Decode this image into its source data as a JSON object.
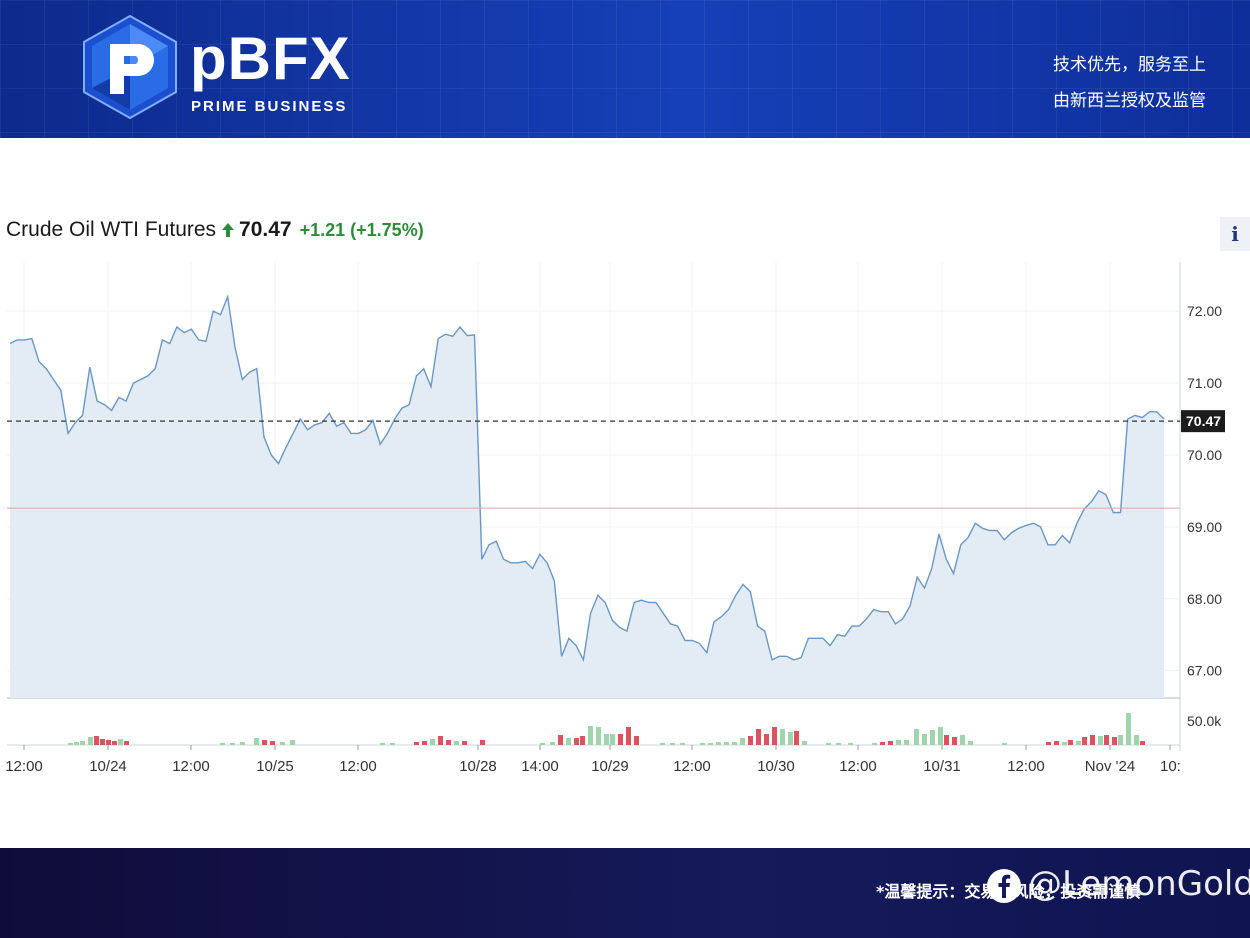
{
  "banner": {
    "logo_word": "pBFX",
    "logo_sub": "PRIME BUSINESS",
    "tagline_1": "技术优先，服务至上",
    "tagline_2": "由新西兰授权及监管",
    "colors": {
      "banner": "#1640b8",
      "footer": "#151a5a"
    }
  },
  "header": {
    "instrument": "Crude Oil WTI Futures",
    "price": "70.47",
    "change": "+1.21 (+1.75%)",
    "trend_icon": "up-arrow-icon",
    "info_label": "i"
  },
  "footer": {
    "note": "*温馨提示：交易有风险，投资需谨慎",
    "watermark": "@LemonGold",
    "watermark_icon": "facebook-icon"
  },
  "chart_data": {
    "type": "area",
    "y_ticks": [
      "72.00",
      "71.00",
      "70.00",
      "69.00",
      "68.00",
      "67.00"
    ],
    "ylim": [
      66.62,
      72.6
    ],
    "current_price": 70.47,
    "current_price_label": "70.47",
    "previous_close": 69.26,
    "volume_tick": "50.0k",
    "x_labels": [
      "12:00",
      "10/24",
      "12:00",
      "10/25",
      "12:00",
      "10/28",
      "14:00",
      "10/29",
      "12:00",
      "10/30",
      "12:00",
      "10/31",
      "12:00",
      "Nov '24",
      "10:"
    ],
    "price_series": [
      71.55,
      71.6,
      71.6,
      71.62,
      71.3,
      71.2,
      71.05,
      70.9,
      70.3,
      70.45,
      70.55,
      71.22,
      70.75,
      70.7,
      70.62,
      70.8,
      70.75,
      71.0,
      71.05,
      71.1,
      71.2,
      71.6,
      71.55,
      71.78,
      71.7,
      71.75,
      71.6,
      71.58,
      72.0,
      71.95,
      72.2,
      71.5,
      71.05,
      71.15,
      71.2,
      70.25,
      70.0,
      69.88,
      70.1,
      70.3,
      70.5,
      70.35,
      70.42,
      70.45,
      70.58,
      70.4,
      70.45,
      70.3,
      70.3,
      70.35,
      70.48,
      70.15,
      70.3,
      70.5,
      70.65,
      70.7,
      71.1,
      71.2,
      70.95,
      71.62,
      71.68,
      71.65,
      71.78,
      71.66,
      71.67,
      68.55,
      68.75,
      68.8,
      68.55,
      68.5,
      68.5,
      68.52,
      68.42,
      68.62,
      68.5,
      68.25,
      67.2,
      67.45,
      67.35,
      67.15,
      67.8,
      68.05,
      67.95,
      67.7,
      67.6,
      67.55,
      67.95,
      67.98,
      67.95,
      67.95,
      67.8,
      67.65,
      67.62,
      67.42,
      67.42,
      67.38,
      67.25,
      67.68,
      67.75,
      67.85,
      68.05,
      68.2,
      68.1,
      67.62,
      67.55,
      67.15,
      67.2,
      67.2,
      67.15,
      67.18,
      67.45,
      67.45,
      67.45,
      67.35,
      67.5,
      67.48,
      67.62,
      67.62,
      67.72,
      67.85,
      67.82,
      67.82,
      67.65,
      67.72,
      67.9,
      68.3,
      68.15,
      68.42,
      68.9,
      68.55,
      68.35,
      68.75,
      68.85,
      69.05,
      68.98,
      68.95,
      68.95,
      68.82,
      68.92,
      68.98,
      69.02,
      69.05,
      69.0,
      68.75,
      68.75,
      68.88,
      68.78,
      69.05,
      69.25,
      69.35,
      69.5,
      69.45,
      69.2,
      69.2,
      70.5,
      70.55,
      70.52,
      70.6,
      70.6,
      70.5
    ],
    "volume_bars": [
      {
        "x": 68,
        "h": 2,
        "c": "g"
      },
      {
        "x": 74,
        "h": 3,
        "c": "g"
      },
      {
        "x": 80,
        "h": 4,
        "c": "g"
      },
      {
        "x": 88,
        "h": 8,
        "c": "g"
      },
      {
        "x": 94,
        "h": 9,
        "c": "r"
      },
      {
        "x": 100,
        "h": 6,
        "c": "r"
      },
      {
        "x": 106,
        "h": 5,
        "c": "r"
      },
      {
        "x": 112,
        "h": 4,
        "c": "r"
      },
      {
        "x": 118,
        "h": 6,
        "c": "g"
      },
      {
        "x": 124,
        "h": 4,
        "c": "r"
      },
      {
        "x": 220,
        "h": 2,
        "c": "g"
      },
      {
        "x": 230,
        "h": 2,
        "c": "g"
      },
      {
        "x": 240,
        "h": 3,
        "c": "g"
      },
      {
        "x": 254,
        "h": 7,
        "c": "g"
      },
      {
        "x": 262,
        "h": 5,
        "c": "r"
      },
      {
        "x": 270,
        "h": 4,
        "c": "r"
      },
      {
        "x": 280,
        "h": 3,
        "c": "g"
      },
      {
        "x": 290,
        "h": 5,
        "c": "g"
      },
      {
        "x": 380,
        "h": 2,
        "c": "g"
      },
      {
        "x": 390,
        "h": 2,
        "c": "g"
      },
      {
        "x": 414,
        "h": 3,
        "c": "r"
      },
      {
        "x": 422,
        "h": 4,
        "c": "r"
      },
      {
        "x": 430,
        "h": 6,
        "c": "g"
      },
      {
        "x": 438,
        "h": 9,
        "c": "r"
      },
      {
        "x": 446,
        "h": 5,
        "c": "r"
      },
      {
        "x": 454,
        "h": 4,
        "c": "g"
      },
      {
        "x": 462,
        "h": 4,
        "c": "r"
      },
      {
        "x": 480,
        "h": 5,
        "c": "r"
      },
      {
        "x": 540,
        "h": 2,
        "c": "g"
      },
      {
        "x": 550,
        "h": 3,
        "c": "g"
      },
      {
        "x": 558,
        "h": 10,
        "c": "r"
      },
      {
        "x": 566,
        "h": 7,
        "c": "g"
      },
      {
        "x": 574,
        "h": 7,
        "c": "r"
      },
      {
        "x": 580,
        "h": 9,
        "c": "r"
      },
      {
        "x": 588,
        "h": 19,
        "c": "g"
      },
      {
        "x": 596,
        "h": 18,
        "c": "g"
      },
      {
        "x": 604,
        "h": 11,
        "c": "g"
      },
      {
        "x": 610,
        "h": 11,
        "c": "g"
      },
      {
        "x": 618,
        "h": 11,
        "c": "r"
      },
      {
        "x": 626,
        "h": 18,
        "c": "r"
      },
      {
        "x": 634,
        "h": 9,
        "c": "r"
      },
      {
        "x": 660,
        "h": 2,
        "c": "g"
      },
      {
        "x": 670,
        "h": 2,
        "c": "g"
      },
      {
        "x": 680,
        "h": 2,
        "c": "g"
      },
      {
        "x": 700,
        "h": 2,
        "c": "g"
      },
      {
        "x": 708,
        "h": 2,
        "c": "g"
      },
      {
        "x": 716,
        "h": 3,
        "c": "g"
      },
      {
        "x": 724,
        "h": 3,
        "c": "g"
      },
      {
        "x": 732,
        "h": 3,
        "c": "g"
      },
      {
        "x": 740,
        "h": 7,
        "c": "g"
      },
      {
        "x": 748,
        "h": 9,
        "c": "r"
      },
      {
        "x": 756,
        "h": 16,
        "c": "r"
      },
      {
        "x": 764,
        "h": 11,
        "c": "r"
      },
      {
        "x": 772,
        "h": 18,
        "c": "r"
      },
      {
        "x": 780,
        "h": 16,
        "c": "g"
      },
      {
        "x": 788,
        "h": 13,
        "c": "g"
      },
      {
        "x": 794,
        "h": 14,
        "c": "r"
      },
      {
        "x": 802,
        "h": 4,
        "c": "g"
      },
      {
        "x": 826,
        "h": 2,
        "c": "g"
      },
      {
        "x": 836,
        "h": 2,
        "c": "g"
      },
      {
        "x": 848,
        "h": 2,
        "c": "g"
      },
      {
        "x": 872,
        "h": 2,
        "c": "g"
      },
      {
        "x": 880,
        "h": 3,
        "c": "r"
      },
      {
        "x": 888,
        "h": 4,
        "c": "r"
      },
      {
        "x": 896,
        "h": 5,
        "c": "g"
      },
      {
        "x": 904,
        "h": 5,
        "c": "g"
      },
      {
        "x": 914,
        "h": 16,
        "c": "g"
      },
      {
        "x": 922,
        "h": 11,
        "c": "g"
      },
      {
        "x": 930,
        "h": 15,
        "c": "g"
      },
      {
        "x": 938,
        "h": 18,
        "c": "g"
      },
      {
        "x": 944,
        "h": 10,
        "c": "r"
      },
      {
        "x": 952,
        "h": 8,
        "c": "r"
      },
      {
        "x": 960,
        "h": 10,
        "c": "g"
      },
      {
        "x": 968,
        "h": 4,
        "c": "g"
      },
      {
        "x": 1002,
        "h": 2,
        "c": "g"
      },
      {
        "x": 1046,
        "h": 3,
        "c": "r"
      },
      {
        "x": 1054,
        "h": 4,
        "c": "r"
      },
      {
        "x": 1062,
        "h": 3,
        "c": "g"
      },
      {
        "x": 1068,
        "h": 5,
        "c": "r"
      },
      {
        "x": 1076,
        "h": 4,
        "c": "g"
      },
      {
        "x": 1082,
        "h": 8,
        "c": "r"
      },
      {
        "x": 1090,
        "h": 10,
        "c": "r"
      },
      {
        "x": 1098,
        "h": 9,
        "c": "g"
      },
      {
        "x": 1104,
        "h": 10,
        "c": "r"
      },
      {
        "x": 1112,
        "h": 8,
        "c": "r"
      },
      {
        "x": 1118,
        "h": 10,
        "c": "g"
      },
      {
        "x": 1126,
        "h": 32,
        "c": "g"
      },
      {
        "x": 1134,
        "h": 10,
        "c": "g"
      },
      {
        "x": 1140,
        "h": 4,
        "c": "r"
      }
    ],
    "colors": {
      "line": "#6a97c4",
      "area": "#e3ecf5",
      "prev_close_line": "#e8a3a3",
      "current_line": "#333333",
      "volume_up": "#9fd4ac",
      "volume_down": "#d9545e"
    }
  }
}
